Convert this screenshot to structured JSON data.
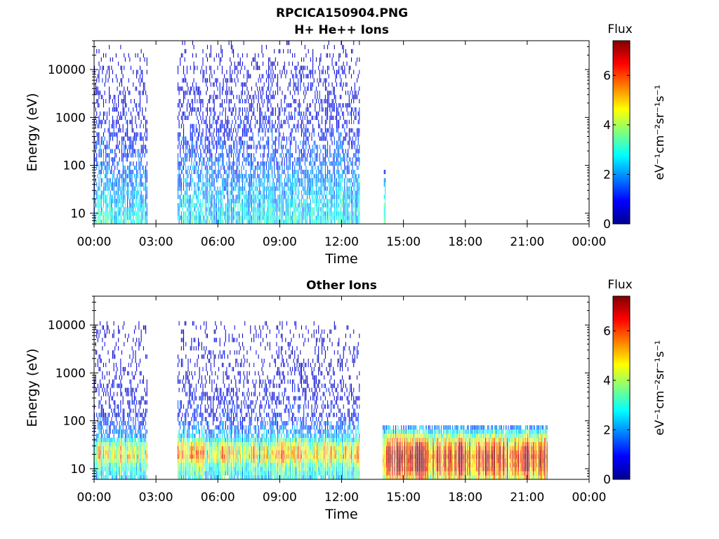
{
  "figure": {
    "title_line1": "RPCICA150904.PNG"
  },
  "chart_data": [
    {
      "type": "heatmap",
      "title": "H+ He++ Ions",
      "xlabel": "Time",
      "ylabel": "Energy (eV)",
      "xticks": [
        "00:00",
        "03:00",
        "06:00",
        "09:00",
        "12:00",
        "15:00",
        "18:00",
        "21:00",
        "00:00"
      ],
      "xlim_hours": [
        0,
        24
      ],
      "yscale": "log",
      "ylim_eV": [
        6,
        40000
      ],
      "yticks": [
        10,
        100,
        1000,
        10000
      ],
      "ytick_labels": [
        "10",
        "100",
        "1000",
        "10000"
      ],
      "colorbar": {
        "title": "Flux",
        "label": "eV⁻¹cm⁻²sr⁻¹s⁻¹",
        "range": [
          0,
          7.4
        ],
        "ticks": [
          0,
          2,
          4,
          6
        ],
        "colormap": "jet"
      },
      "data_intervals": [
        {
          "start_h": 0.0,
          "end_h": 2.6,
          "flux_profile": [
            [
              6,
              2.8
            ],
            [
              12,
              2.5
            ],
            [
              30,
              2.0
            ],
            [
              100,
              1.5
            ],
            [
              1000,
              0.7
            ],
            [
              10000,
              0.5
            ],
            [
              16000,
              0.3
            ],
            [
              40000,
              0.1
            ]
          ]
        },
        {
          "start_h": 4.05,
          "end_h": 12.9,
          "flux_profile": [
            [
              6,
              2.8
            ],
            [
              12,
              2.5
            ],
            [
              30,
              2.2
            ],
            [
              100,
              1.6
            ],
            [
              1000,
              0.8
            ],
            [
              10000,
              0.6
            ],
            [
              16000,
              0.4
            ],
            [
              40000,
              0.1
            ]
          ]
        },
        {
          "start_h": 14.05,
          "end_h": 14.15,
          "flux_profile": [
            [
              6,
              3.2
            ],
            [
              15,
              3.0
            ],
            [
              40,
              2.0
            ],
            [
              80,
              1.0
            ]
          ]
        }
      ]
    },
    {
      "type": "heatmap",
      "title": "Other Ions",
      "xlabel": "Time",
      "ylabel": "Energy (eV)",
      "xticks": [
        "00:00",
        "03:00",
        "06:00",
        "09:00",
        "12:00",
        "15:00",
        "18:00",
        "21:00",
        "00:00"
      ],
      "xlim_hours": [
        0,
        24
      ],
      "yscale": "log",
      "ylim_eV": [
        6,
        40000
      ],
      "yticks": [
        10,
        100,
        1000,
        10000
      ],
      "ytick_labels": [
        "10",
        "100",
        "1000",
        "10000"
      ],
      "colorbar": {
        "title": "Flux",
        "label": "eV⁻¹cm⁻²sr⁻¹s⁻¹",
        "range": [
          0,
          7.4
        ],
        "ticks": [
          0,
          2,
          4,
          6
        ],
        "colormap": "jet"
      },
      "data_intervals": [
        {
          "start_h": 0.0,
          "end_h": 2.6,
          "flux_profile": [
            [
              6,
              2.5
            ],
            [
              12,
              3.5
            ],
            [
              18,
              4.8
            ],
            [
              30,
              4.2
            ],
            [
              45,
              2.2
            ],
            [
              120,
              1.0
            ],
            [
              1000,
              0.5
            ],
            [
              11000,
              0.3
            ]
          ]
        },
        {
          "start_h": 4.05,
          "end_h": 12.9,
          "flux_profile": [
            [
              6,
              2.6
            ],
            [
              12,
              3.6
            ],
            [
              18,
              5.0
            ],
            [
              30,
              4.5
            ],
            [
              45,
              2.4
            ],
            [
              120,
              1.0
            ],
            [
              1000,
              0.5
            ],
            [
              11000,
              0.3
            ]
          ]
        },
        {
          "start_h": 14.0,
          "end_h": 22.0,
          "flux_profile": [
            [
              6,
              4.5
            ],
            [
              10,
              6.2
            ],
            [
              18,
              6.8
            ],
            [
              30,
              5.8
            ],
            [
              50,
              3.8
            ],
            [
              75,
              1.8
            ],
            [
              80,
              0.0
            ]
          ]
        }
      ]
    }
  ]
}
